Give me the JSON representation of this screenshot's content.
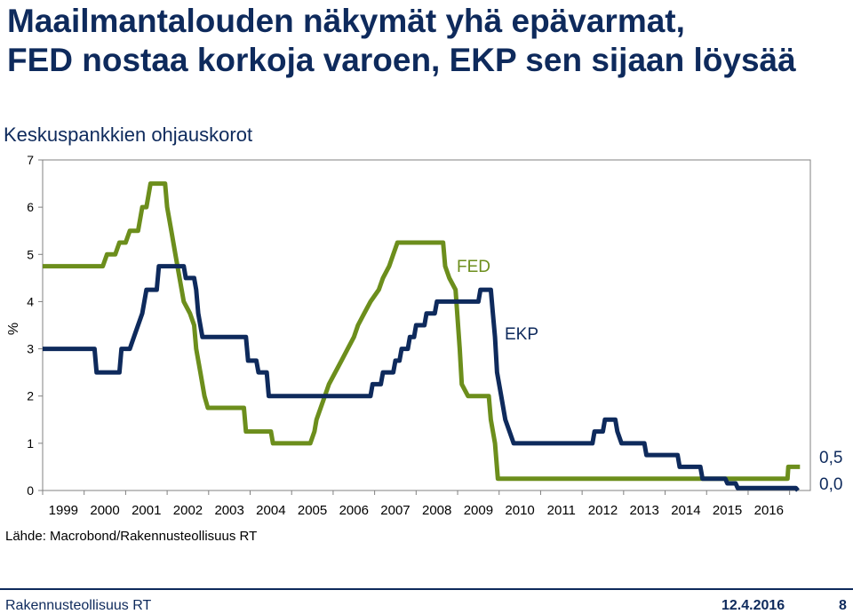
{
  "header": {
    "title_line1": "Maailmantalouden näkymät yhä epävarmat,",
    "title_line2": "FED nostaa korkoja varoen, EKP sen sijaan löysää",
    "subtitle": "Keskuspankkien ohjauskorot"
  },
  "footer": {
    "source": "Lähde: Macrobond/Rakennusteollisuus RT",
    "org": "Rakennusteollisuus RT",
    "date": "12.4.2016",
    "page": "8"
  },
  "colors": {
    "fed": "#6c8e1c",
    "ekp": "#0e2a5c",
    "frame": "#808080"
  },
  "chart_data": {
    "type": "line",
    "title": "Keskuspankkien ohjauskorot",
    "ylabel": "%",
    "ylim": [
      0,
      7
    ],
    "xlim": [
      1998.0,
      2016.5
    ],
    "yticks": [
      "0",
      "1",
      "2",
      "3",
      "4",
      "5",
      "6",
      "7"
    ],
    "xticks": [
      "1999",
      "2000",
      "2001",
      "2002",
      "2003",
      "2004",
      "2005",
      "2006",
      "2007",
      "2008",
      "2009",
      "2010",
      "2011",
      "2012",
      "2013",
      "2014",
      "2015",
      "2016"
    ],
    "end_labels": [
      "0,5",
      "0,0"
    ],
    "series": [
      {
        "name": "FED",
        "points": [
          [
            1998.0,
            4.75
          ],
          [
            1999.45,
            4.75
          ],
          [
            1999.55,
            5.0
          ],
          [
            1999.75,
            5.0
          ],
          [
            1999.85,
            5.25
          ],
          [
            2000.0,
            5.25
          ],
          [
            2000.1,
            5.5
          ],
          [
            2000.3,
            5.5
          ],
          [
            2000.4,
            6.0
          ],
          [
            2000.5,
            6.0
          ],
          [
            2000.6,
            6.5
          ],
          [
            2000.95,
            6.5
          ],
          [
            2001.0,
            6.0
          ],
          [
            2001.1,
            5.5
          ],
          [
            2001.2,
            5.0
          ],
          [
            2001.3,
            4.5
          ],
          [
            2001.4,
            4.0
          ],
          [
            2001.55,
            3.75
          ],
          [
            2001.65,
            3.5
          ],
          [
            2001.7,
            3.0
          ],
          [
            2001.8,
            2.5
          ],
          [
            2001.9,
            2.0
          ],
          [
            2001.98,
            1.75
          ],
          [
            2002.85,
            1.75
          ],
          [
            2002.9,
            1.25
          ],
          [
            2003.5,
            1.25
          ],
          [
            2003.55,
            1.0
          ],
          [
            2004.45,
            1.0
          ],
          [
            2004.55,
            1.25
          ],
          [
            2004.6,
            1.5
          ],
          [
            2004.7,
            1.75
          ],
          [
            2004.8,
            2.0
          ],
          [
            2004.9,
            2.25
          ],
          [
            2005.05,
            2.5
          ],
          [
            2005.2,
            2.75
          ],
          [
            2005.35,
            3.0
          ],
          [
            2005.5,
            3.25
          ],
          [
            2005.6,
            3.5
          ],
          [
            2005.75,
            3.75
          ],
          [
            2005.9,
            4.0
          ],
          [
            2006.1,
            4.25
          ],
          [
            2006.2,
            4.5
          ],
          [
            2006.35,
            4.75
          ],
          [
            2006.45,
            5.0
          ],
          [
            2006.55,
            5.25
          ],
          [
            2007.65,
            5.25
          ],
          [
            2007.7,
            4.75
          ],
          [
            2007.8,
            4.5
          ],
          [
            2007.95,
            4.25
          ],
          [
            2008.05,
            3.0
          ],
          [
            2008.1,
            2.25
          ],
          [
            2008.25,
            2.0
          ],
          [
            2008.75,
            2.0
          ],
          [
            2008.8,
            1.5
          ],
          [
            2008.9,
            1.0
          ],
          [
            2008.97,
            0.25
          ],
          [
            2015.95,
            0.25
          ],
          [
            2015.97,
            0.5
          ],
          [
            2016.25,
            0.5
          ]
        ]
      },
      {
        "name": "EKP",
        "points": [
          [
            1998.0,
            3.0
          ],
          [
            1999.25,
            3.0
          ],
          [
            1999.3,
            2.5
          ],
          [
            1999.85,
            2.5
          ],
          [
            1999.9,
            3.0
          ],
          [
            2000.1,
            3.0
          ],
          [
            2000.2,
            3.25
          ],
          [
            2000.3,
            3.5
          ],
          [
            2000.4,
            3.75
          ],
          [
            2000.5,
            4.25
          ],
          [
            2000.75,
            4.25
          ],
          [
            2000.8,
            4.75
          ],
          [
            2001.4,
            4.75
          ],
          [
            2001.45,
            4.5
          ],
          [
            2001.65,
            4.5
          ],
          [
            2001.7,
            4.25
          ],
          [
            2001.75,
            3.75
          ],
          [
            2001.85,
            3.25
          ],
          [
            2002.9,
            3.25
          ],
          [
            2002.95,
            2.75
          ],
          [
            2003.15,
            2.75
          ],
          [
            2003.2,
            2.5
          ],
          [
            2003.4,
            2.5
          ],
          [
            2003.45,
            2.0
          ],
          [
            2005.9,
            2.0
          ],
          [
            2005.95,
            2.25
          ],
          [
            2006.15,
            2.25
          ],
          [
            2006.2,
            2.5
          ],
          [
            2006.45,
            2.5
          ],
          [
            2006.5,
            2.75
          ],
          [
            2006.6,
            2.75
          ],
          [
            2006.65,
            3.0
          ],
          [
            2006.8,
            3.0
          ],
          [
            2006.85,
            3.25
          ],
          [
            2006.95,
            3.25
          ],
          [
            2007.0,
            3.5
          ],
          [
            2007.2,
            3.5
          ],
          [
            2007.25,
            3.75
          ],
          [
            2007.45,
            3.75
          ],
          [
            2007.5,
            4.0
          ],
          [
            2008.5,
            4.0
          ],
          [
            2008.55,
            4.25
          ],
          [
            2008.8,
            4.25
          ],
          [
            2008.85,
            3.75
          ],
          [
            2008.9,
            3.25
          ],
          [
            2008.95,
            2.5
          ],
          [
            2009.05,
            2.0
          ],
          [
            2009.15,
            1.5
          ],
          [
            2009.25,
            1.25
          ],
          [
            2009.35,
            1.0
          ],
          [
            2011.25,
            1.0
          ],
          [
            2011.3,
            1.25
          ],
          [
            2011.5,
            1.25
          ],
          [
            2011.55,
            1.5
          ],
          [
            2011.8,
            1.5
          ],
          [
            2011.85,
            1.25
          ],
          [
            2011.95,
            1.0
          ],
          [
            2012.5,
            1.0
          ],
          [
            2012.55,
            0.75
          ],
          [
            2013.3,
            0.75
          ],
          [
            2013.35,
            0.5
          ],
          [
            2013.85,
            0.5
          ],
          [
            2013.9,
            0.25
          ],
          [
            2014.45,
            0.25
          ],
          [
            2014.5,
            0.15
          ],
          [
            2014.7,
            0.15
          ],
          [
            2014.75,
            0.05
          ],
          [
            2016.15,
            0.05
          ],
          [
            2016.2,
            0.0
          ]
        ]
      }
    ]
  }
}
